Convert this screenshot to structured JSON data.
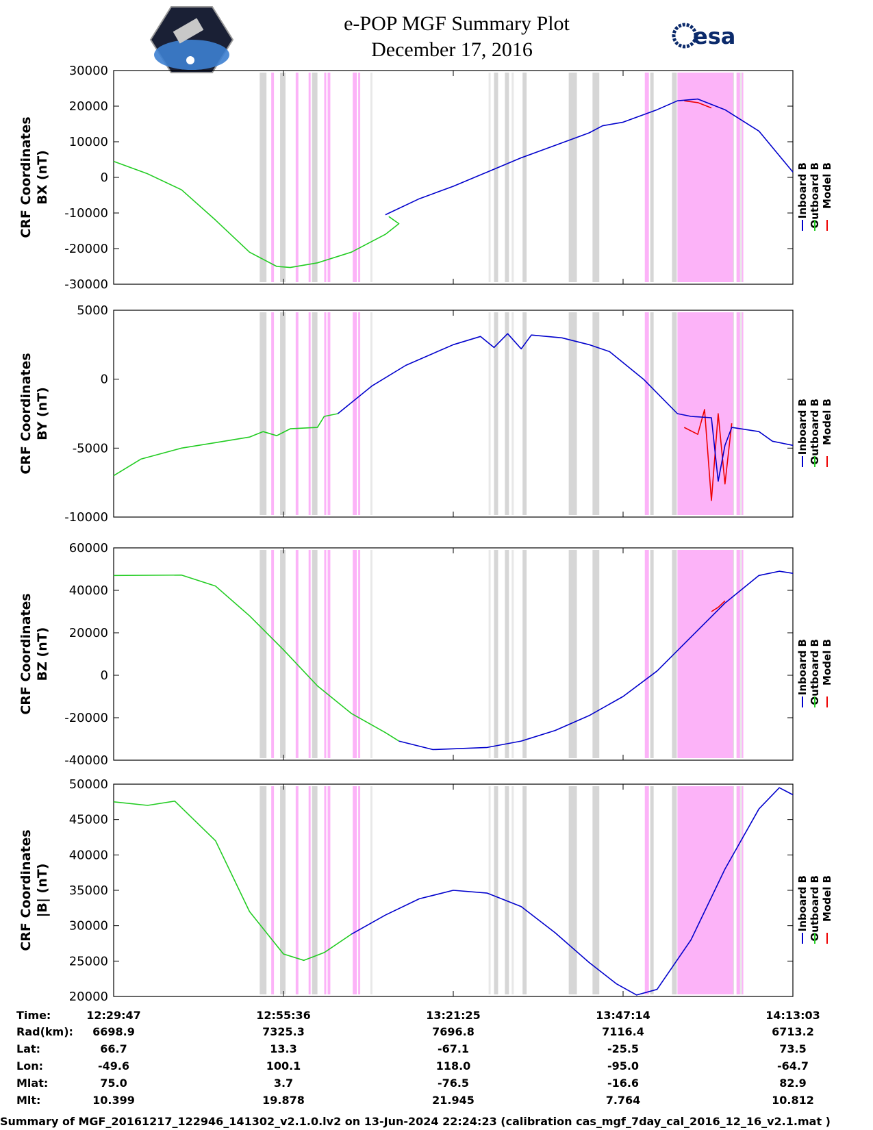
{
  "header": {
    "title": "e-POP MGF Summary Plot",
    "date": "December 17, 2016",
    "agency": "esa"
  },
  "colors": {
    "inboard": "#0000cc",
    "outboard": "#22cc22",
    "model": "#ee0000",
    "gray_band": "#d6d6d6",
    "pink_band": "#fcb3f8"
  },
  "legend": [
    "Inboard B",
    "Outboard B",
    "Model B"
  ],
  "bands": {
    "gray": [
      [
        0.215,
        0.225
      ],
      [
        0.245,
        0.253
      ],
      [
        0.292,
        0.3
      ],
      [
        0.56,
        0.566
      ],
      [
        0.576,
        0.582
      ],
      [
        0.602,
        0.608
      ],
      [
        0.67,
        0.682
      ],
      [
        0.705,
        0.715
      ],
      [
        0.79,
        0.795
      ],
      [
        0.822,
        0.829
      ],
      [
        0.852,
        0.858
      ],
      [
        0.908,
        0.913
      ]
    ],
    "pink": [
      [
        0.232,
        0.236
      ],
      [
        0.268,
        0.272
      ],
      [
        0.287,
        0.29
      ],
      [
        0.31,
        0.313
      ],
      [
        0.315,
        0.319
      ],
      [
        0.352,
        0.358
      ],
      [
        0.36,
        0.363
      ],
      [
        0.782,
        0.788
      ],
      [
        0.83,
        0.912
      ],
      [
        0.917,
        0.927
      ]
    ],
    "light": [
      [
        0.378,
        0.381
      ],
      [
        0.552,
        0.555
      ],
      [
        0.586,
        0.589
      ],
      [
        0.922,
        0.925
      ]
    ]
  },
  "chart_data": [
    {
      "type": "line",
      "id": "bx",
      "ylabel": "CRF Coordinates",
      "ylabel2": "BX (nT)",
      "ylim": [
        -30000,
        30000
      ],
      "yticks": [
        30000,
        20000,
        10000,
        0,
        -10000,
        -20000,
        -30000
      ],
      "series": [
        {
          "name": "Outboard B",
          "points": [
            [
              0,
              4500
            ],
            [
              0.05,
              1000
            ],
            [
              0.1,
              -3500
            ],
            [
              0.15,
              -12000
            ],
            [
              0.2,
              -21000
            ],
            [
              0.24,
              -25000
            ],
            [
              0.26,
              -25300
            ],
            [
              0.3,
              -24000
            ],
            [
              0.35,
              -21000
            ],
            [
              0.4,
              -16000
            ],
            [
              0.42,
              -13000
            ],
            [
              0.405,
              -11000
            ]
          ]
        },
        {
          "name": "Model B",
          "points": [
            [
              0.84,
              21500
            ],
            [
              0.86,
              21000
            ],
            [
              0.88,
              19500
            ]
          ]
        },
        {
          "name": "Inboard B",
          "points": [
            [
              0.4,
              -10500
            ],
            [
              0.45,
              -6000
            ],
            [
              0.5,
              -2500
            ],
            [
              0.55,
              1500
            ],
            [
              0.6,
              5500
            ],
            [
              0.65,
              9000
            ],
            [
              0.7,
              12500
            ],
            [
              0.72,
              14500
            ],
            [
              0.75,
              15500
            ],
            [
              0.8,
              19000
            ],
            [
              0.83,
              21500
            ],
            [
              0.86,
              22000
            ],
            [
              0.9,
              19000
            ],
            [
              0.95,
              13000
            ],
            [
              1.0,
              1500
            ]
          ]
        }
      ]
    },
    {
      "type": "line",
      "id": "by",
      "ylabel": "CRF Coordinates",
      "ylabel2": "BY (nT)",
      "ylim": [
        -10000,
        5000
      ],
      "yticks": [
        5000,
        0,
        -5000,
        -10000
      ],
      "series": [
        {
          "name": "Outboard B",
          "points": [
            [
              0,
              -7000
            ],
            [
              0.04,
              -5800
            ],
            [
              0.1,
              -5000
            ],
            [
              0.15,
              -4600
            ],
            [
              0.2,
              -4200
            ],
            [
              0.22,
              -3800
            ],
            [
              0.24,
              -4100
            ],
            [
              0.26,
              -3600
            ],
            [
              0.3,
              -3500
            ],
            [
              0.31,
              -2700
            ],
            [
              0.33,
              -2500
            ]
          ]
        },
        {
          "name": "Model B",
          "points": [
            [
              0.84,
              -3500
            ],
            [
              0.86,
              -4000
            ],
            [
              0.87,
              -2200
            ],
            [
              0.88,
              -8800
            ],
            [
              0.89,
              -2500
            ],
            [
              0.9,
              -7600
            ],
            [
              0.91,
              -3200
            ]
          ]
        },
        {
          "name": "Inboard B",
          "points": [
            [
              0.33,
              -2500
            ],
            [
              0.38,
              -500
            ],
            [
              0.43,
              1000
            ],
            [
              0.5,
              2500
            ],
            [
              0.54,
              3100
            ],
            [
              0.56,
              2300
            ],
            [
              0.58,
              3300
            ],
            [
              0.6,
              2200
            ],
            [
              0.615,
              3200
            ],
            [
              0.66,
              3000
            ],
            [
              0.7,
              2500
            ],
            [
              0.73,
              2000
            ],
            [
              0.75,
              1200
            ],
            [
              0.78,
              0
            ],
            [
              0.8,
              -1000
            ],
            [
              0.83,
              -2500
            ],
            [
              0.85,
              -2700
            ],
            [
              0.88,
              -2800
            ],
            [
              0.89,
              -7400
            ],
            [
              0.9,
              -4800
            ],
            [
              0.91,
              -3500
            ],
            [
              0.95,
              -3800
            ],
            [
              0.97,
              -4500
            ],
            [
              1.0,
              -4800
            ]
          ]
        }
      ]
    },
    {
      "type": "line",
      "id": "bz",
      "ylabel": "CRF Coordinates",
      "ylabel2": "BZ (nT)",
      "ylim": [
        -40000,
        60000
      ],
      "yticks": [
        60000,
        40000,
        20000,
        0,
        -20000,
        -40000
      ],
      "series": [
        {
          "name": "Outboard B",
          "points": [
            [
              0,
              47000
            ],
            [
              0.1,
              47200
            ],
            [
              0.15,
              42000
            ],
            [
              0.2,
              28000
            ],
            [
              0.25,
              12000
            ],
            [
              0.3,
              -5000
            ],
            [
              0.35,
              -18000
            ],
            [
              0.4,
              -27000
            ],
            [
              0.42,
              -31000
            ]
          ]
        },
        {
          "name": "Model B",
          "points": [
            [
              0.88,
              30000
            ],
            [
              0.89,
              32000
            ],
            [
              0.9,
              35000
            ]
          ]
        },
        {
          "name": "Inboard B",
          "points": [
            [
              0.42,
              -31000
            ],
            [
              0.47,
              -35000
            ],
            [
              0.55,
              -34000
            ],
            [
              0.6,
              -31000
            ],
            [
              0.65,
              -26000
            ],
            [
              0.7,
              -19000
            ],
            [
              0.75,
              -10000
            ],
            [
              0.8,
              2000
            ],
            [
              0.85,
              18000
            ],
            [
              0.9,
              34000
            ],
            [
              0.95,
              47000
            ],
            [
              0.98,
              49000
            ],
            [
              1.0,
              48000
            ]
          ]
        }
      ]
    },
    {
      "type": "line",
      "id": "bmag",
      "ylabel": "CRF Coordinates",
      "ylabel2": "|B| (nT)",
      "ylim": [
        20000,
        50000
      ],
      "yticks": [
        50000,
        45000,
        40000,
        35000,
        30000,
        25000,
        20000
      ],
      "series": [
        {
          "name": "Outboard B",
          "points": [
            [
              0,
              47500
            ],
            [
              0.05,
              47000
            ],
            [
              0.09,
              47600
            ],
            [
              0.15,
              42000
            ],
            [
              0.2,
              32000
            ],
            [
              0.25,
              26000
            ],
            [
              0.28,
              25100
            ],
            [
              0.31,
              26200
            ],
            [
              0.35,
              28800
            ]
          ]
        },
        {
          "name": "Inboard B",
          "points": [
            [
              0.35,
              28800
            ],
            [
              0.4,
              31500
            ],
            [
              0.45,
              33800
            ],
            [
              0.5,
              35000
            ],
            [
              0.55,
              34600
            ],
            [
              0.6,
              32700
            ],
            [
              0.65,
              29000
            ],
            [
              0.7,
              24800
            ],
            [
              0.74,
              21800
            ],
            [
              0.77,
              20200
            ],
            [
              0.8,
              21000
            ],
            [
              0.85,
              28000
            ],
            [
              0.9,
              38000
            ],
            [
              0.95,
              46500
            ],
            [
              0.98,
              49500
            ],
            [
              1.0,
              48500
            ]
          ]
        }
      ]
    }
  ],
  "table": {
    "labels": [
      "Time:",
      "Rad(km):",
      "Lat:",
      "Lon:",
      "Mlat:",
      "Mlt:"
    ],
    "columns": [
      [
        "12:29:47",
        "6698.9",
        "66.7",
        "-49.6",
        "75.0",
        "10.399"
      ],
      [
        "12:55:36",
        "7325.3",
        "13.3",
        "100.1",
        "3.7",
        "19.878"
      ],
      [
        "13:21:25",
        "7696.8",
        "-67.1",
        "118.0",
        "-76.5",
        "21.945"
      ],
      [
        "13:47:14",
        "7116.4",
        "-25.5",
        "-95.0",
        "-16.6",
        "7.764"
      ],
      [
        "14:13:03",
        "6713.2",
        "73.5",
        "-64.7",
        "82.9",
        "10.812"
      ]
    ]
  },
  "footer": "Summary of MGF_20161217_122946_141302_v2.1.0.lv2 on 13-Jun-2024 22:24:23 (calibration cas_mgf_7day_cal_2016_12_16_v2.1.mat )"
}
